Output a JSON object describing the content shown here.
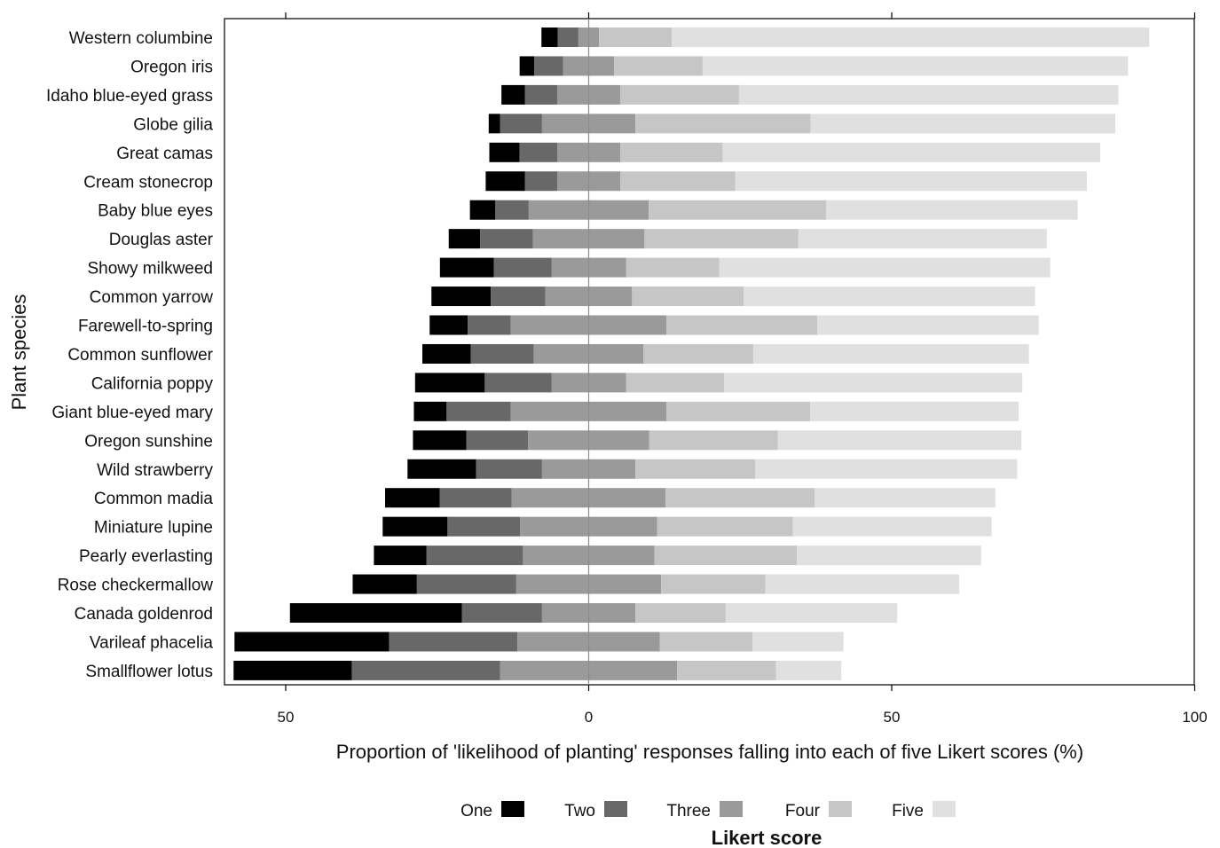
{
  "chart_data": {
    "type": "bar",
    "orientation": "horizontal",
    "stacking": "diverging",
    "categories": [
      "Western columbine",
      "Oregon iris",
      "Idaho blue-eyed grass",
      "Globe gilia",
      "Great camas",
      "Cream stonecrop",
      "Baby blue eyes",
      "Douglas aster",
      "Showy milkweed",
      "Common yarrow",
      "Farewell-to-spring",
      "Common sunflower",
      "California poppy",
      "Giant blue-eyed mary",
      "Oregon sunshine",
      "Wild strawberry",
      "Common madia",
      "Miniature lupine",
      "Pearly everlasting",
      "Rose checkermallow",
      "Canada goldenrod",
      "Varileaf phacelia",
      "Smallflower lotus"
    ],
    "series": [
      {
        "name": "One",
        "color": "#000000",
        "values": [
          2.7,
          2.4,
          3.9,
          1.9,
          5.0,
          6.5,
          4.2,
          5.2,
          8.9,
          9.8,
          6.3,
          8.0,
          11.5,
          5.4,
          8.8,
          11.3,
          9.0,
          10.7,
          8.7,
          10.6,
          28.4,
          25.5,
          19.5
        ]
      },
      {
        "name": "Two",
        "color": "#686868",
        "values": [
          3.4,
          4.8,
          5.3,
          6.9,
          6.2,
          5.3,
          5.5,
          8.7,
          9.5,
          9.0,
          7.1,
          10.4,
          11.0,
          10.6,
          10.2,
          10.9,
          11.9,
          12.0,
          15.9,
          16.4,
          13.2,
          21.2,
          24.5
        ]
      },
      {
        "name": "Three",
        "color": "#9a9a9a",
        "values": [
          3.4,
          8.4,
          10.4,
          15.4,
          10.4,
          10.4,
          19.8,
          18.4,
          12.3,
          14.3,
          25.7,
          18.1,
          12.3,
          25.7,
          20.0,
          15.4,
          25.4,
          22.6,
          21.7,
          23.9,
          15.4,
          23.5,
          29.2
        ]
      },
      {
        "name": "Four",
        "color": "#c6c6c6",
        "values": [
          12.0,
          14.6,
          19.6,
          28.9,
          16.9,
          19.0,
          29.3,
          25.4,
          15.4,
          18.4,
          24.9,
          18.1,
          16.2,
          23.7,
          21.2,
          19.8,
          24.6,
          22.4,
          23.5,
          17.2,
          14.9,
          15.3,
          16.3
        ]
      },
      {
        "name": "Five",
        "color": "#e0e0e0",
        "values": [
          78.8,
          70.2,
          62.6,
          50.3,
          62.3,
          58.0,
          41.5,
          41.0,
          54.6,
          48.1,
          36.5,
          45.5,
          49.2,
          34.4,
          40.2,
          43.2,
          29.8,
          32.8,
          30.4,
          32.0,
          28.3,
          15.0,
          10.8
        ]
      }
    ],
    "neutral_split": 0.5,
    "x_ticks": [
      {
        "value": -50,
        "label": "50"
      },
      {
        "value": 0,
        "label": "0"
      },
      {
        "value": 50,
        "label": "50"
      },
      {
        "value": 100,
        "label": "100"
      }
    ],
    "xlim": [
      -60,
      100
    ],
    "xlabel": "Proportion of 'likelihood of planting' responses falling into each of five Likert scores (%)",
    "ylabel": "Plant species",
    "legend": {
      "title": "Likert score",
      "placement": "bottom"
    },
    "grid": false
  }
}
